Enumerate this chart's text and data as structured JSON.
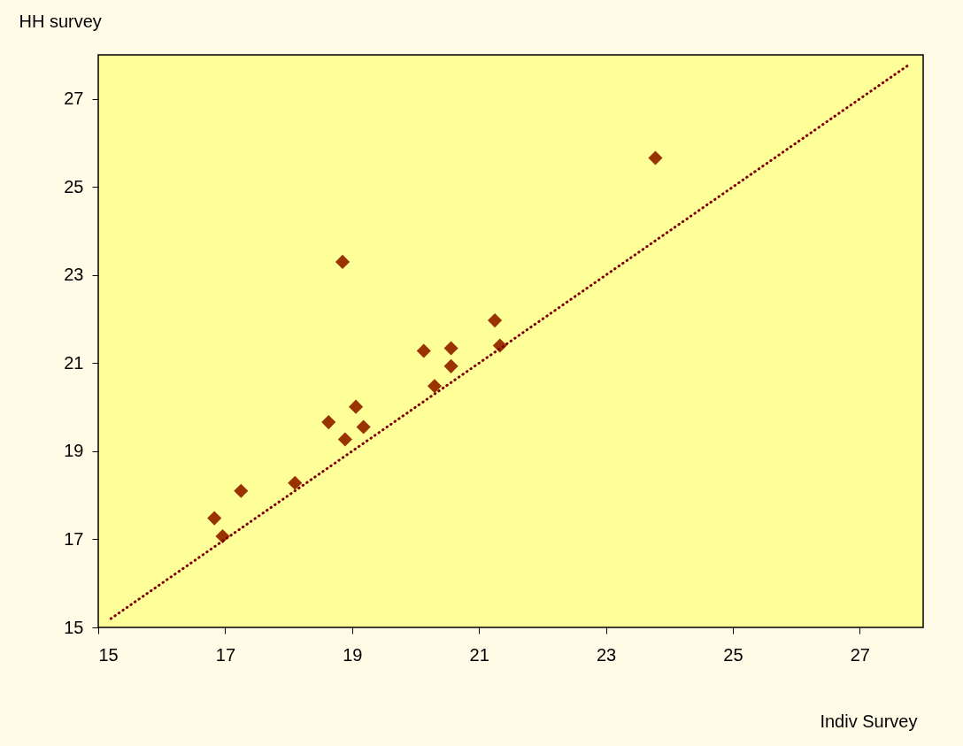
{
  "chart_data": {
    "type": "scatter",
    "xlabel": "Indiv Survey",
    "ylabel": "HH survey",
    "xlim": [
      15,
      28
    ],
    "ylim": [
      15,
      28
    ],
    "xticks": [
      15,
      17,
      19,
      21,
      23,
      25,
      27
    ],
    "yticks": [
      15,
      17,
      19,
      21,
      23,
      25,
      27
    ],
    "grid": false,
    "series": [
      {
        "color": "#993300",
        "marker": "diamond",
        "x": [
          16.83,
          16.96,
          17.25,
          18.1,
          18.63,
          18.89,
          19.06,
          19.18,
          18.85,
          20.13,
          20.56,
          20.56,
          20.3,
          21.25,
          21.33,
          23.78
        ],
        "values": [
          17.48,
          17.07,
          18.1,
          18.28,
          19.66,
          19.27,
          20.01,
          19.55,
          23.3,
          21.28,
          21.34,
          20.93,
          20.48,
          21.97,
          21.4,
          25.66
        ]
      },
      {
        "type": "line",
        "color": "#800000",
        "line_style": "dotted",
        "marker": "none",
        "x": [
          15.2,
          27.8
        ],
        "values": [
          15.2,
          27.8
        ]
      }
    ]
  }
}
